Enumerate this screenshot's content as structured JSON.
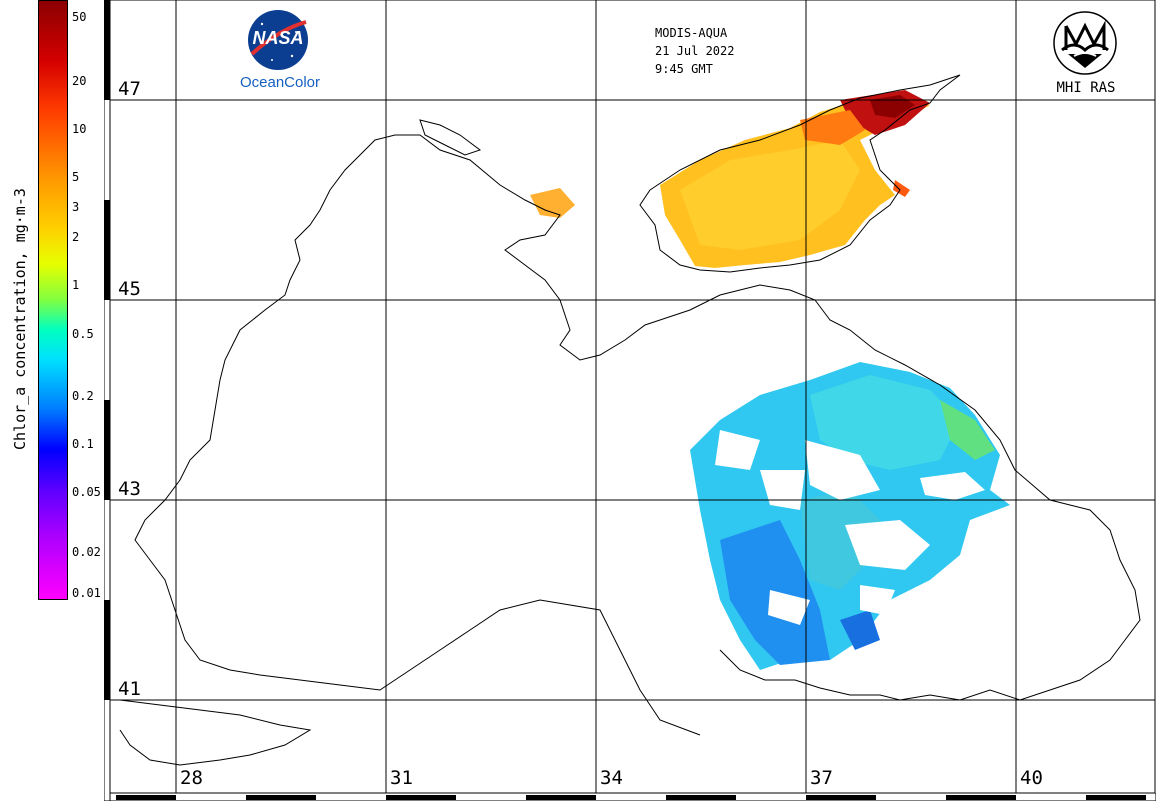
{
  "header": {
    "sensor": "MODIS-AQUA",
    "date": "21 Jul 2022",
    "time": "9:45 GMT"
  },
  "logos": {
    "nasa_word": "NASA",
    "nasa_sub": "OceanColor",
    "mhi": "MHI RAS"
  },
  "colorbar": {
    "title": "Chlor_a concentration, mg·m-3",
    "labels": [
      "50",
      "20",
      "10",
      "5",
      "3",
      "2",
      "1",
      "0.5",
      "0.2",
      "0.1",
      "0.05",
      "0.02",
      "0.01"
    ],
    "scale": "log",
    "colors": {
      "high": "#8b0000",
      "mid": "#ffd000",
      "low": "#ff00ff"
    }
  },
  "map": {
    "lat_labels": [
      "47",
      "45",
      "43",
      "41"
    ],
    "lon_labels": [
      "28",
      "31",
      "34",
      "37",
      "40"
    ],
    "grid": true
  }
}
